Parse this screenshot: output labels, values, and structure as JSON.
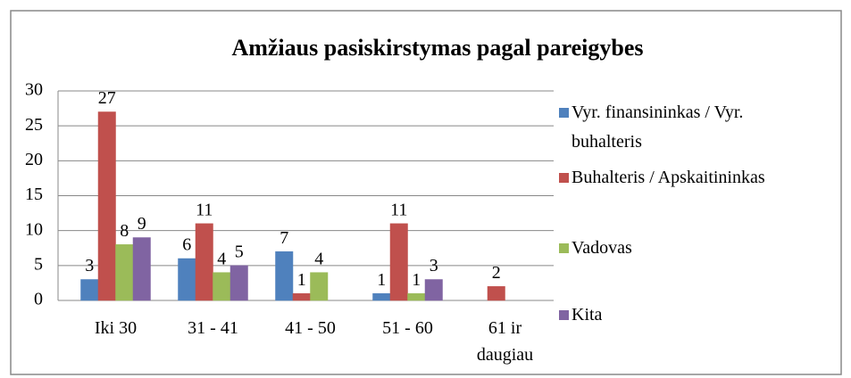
{
  "chart_data": {
    "type": "bar",
    "title": "Amžiaus pasiskirstymas pagal pareigybes",
    "categories": [
      "Iki 30",
      "31 - 41",
      "41 - 50",
      "51 - 60",
      "61 ir daugiau"
    ],
    "series": [
      {
        "name": "Vyr. finansininkas / Vyr. buhalteris",
        "color": "#4f81bd",
        "values": [
          3,
          6,
          7,
          1,
          null
        ]
      },
      {
        "name": "Buhalteris / Apskaitininkas",
        "color": "#c0504d",
        "values": [
          27,
          11,
          1,
          11,
          2
        ]
      },
      {
        "name": "Vadovas",
        "color": "#9bbb59",
        "values": [
          8,
          4,
          4,
          1,
          null
        ]
      },
      {
        "name": "Kita",
        "color": "#8064a2",
        "values": [
          9,
          5,
          null,
          3,
          null
        ]
      }
    ],
    "ylim": [
      0,
      30
    ],
    "yticks": [
      0,
      5,
      10,
      15,
      20,
      25,
      30
    ],
    "grid": true,
    "legend": "right"
  }
}
